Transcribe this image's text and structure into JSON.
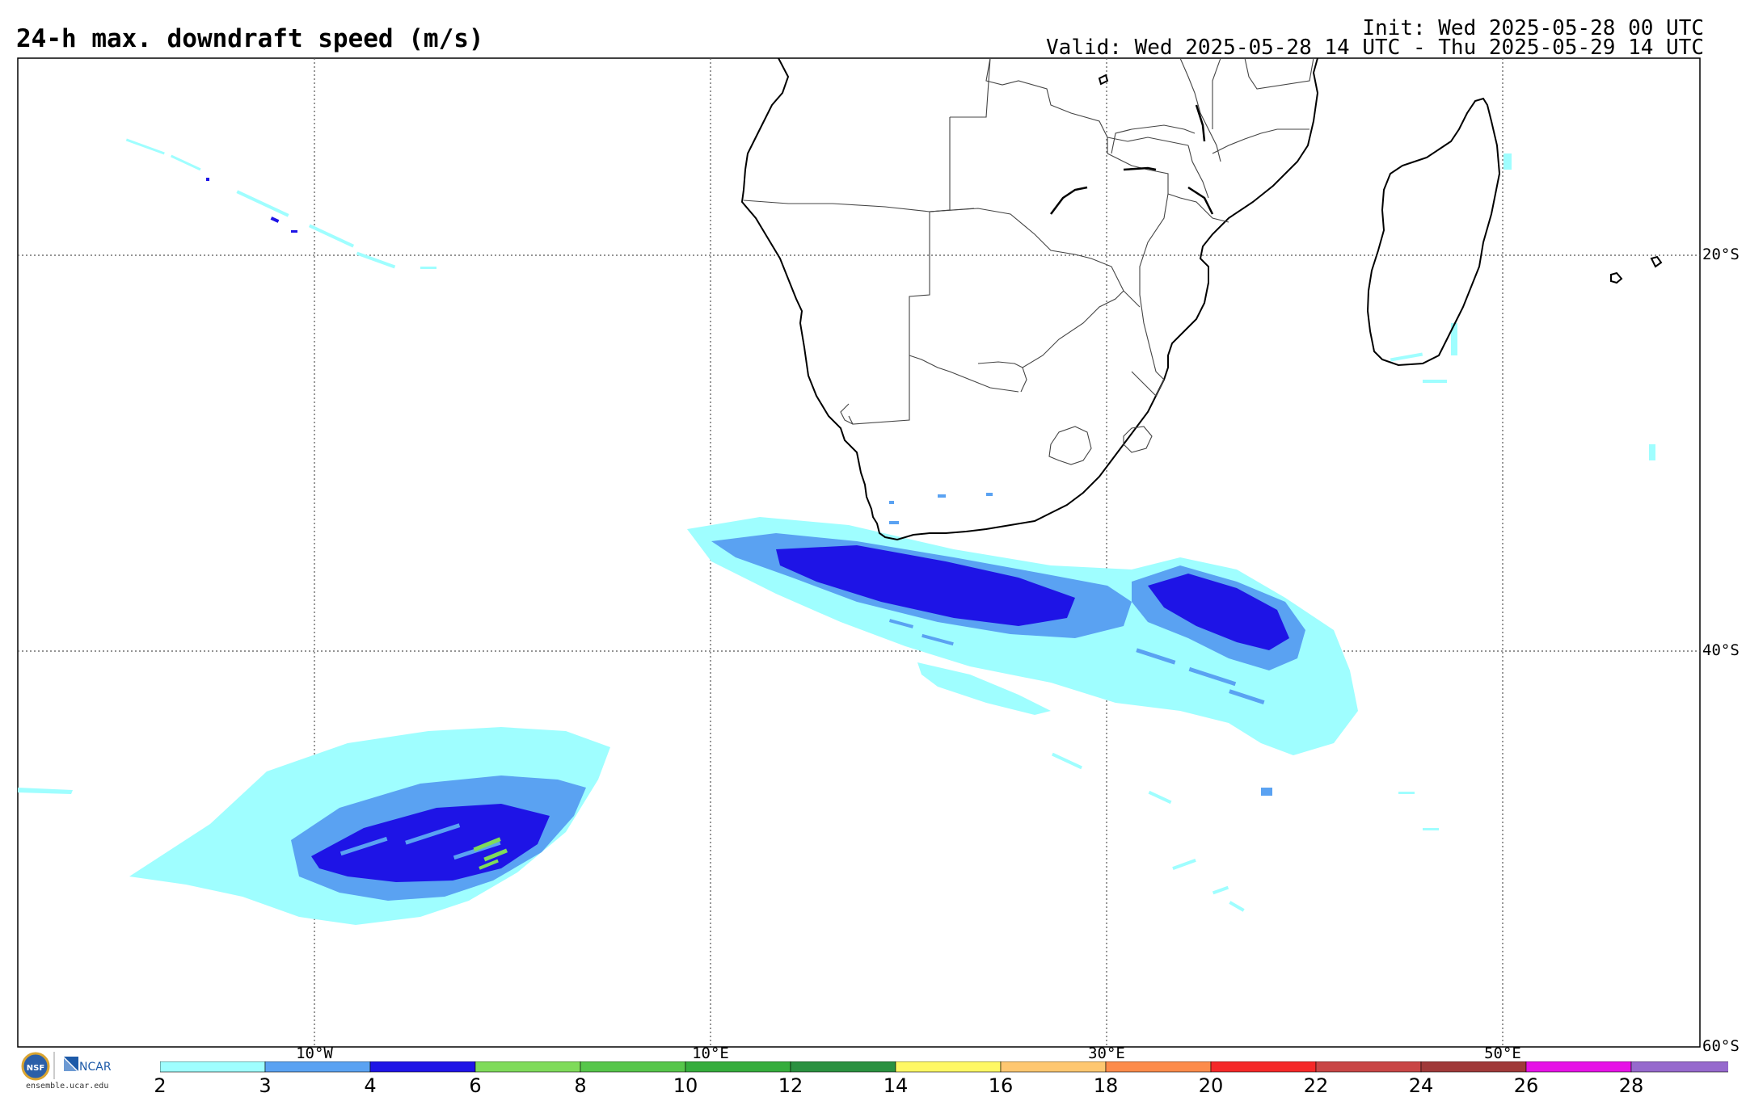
{
  "header": {
    "title": "24-h max. downdraft speed (m/s)",
    "init": "Init: Wed 2025-05-28 00 UTC",
    "valid": "Valid: Wed 2025-05-28 14 UTC - Thu 2025-05-29 14 UTC"
  },
  "map": {
    "region": "Southern Africa and South Atlantic / Southwest Indian Ocean",
    "lon_labels": [
      "10°W",
      "10°E",
      "30°E",
      "50°E"
    ],
    "lat_labels": [
      "20°S",
      "40°S",
      "60°S"
    ],
    "gridlines": "dotted"
  },
  "colorbar": {
    "units": "m/s",
    "ticks": [
      "2",
      "3",
      "4",
      "6",
      "8",
      "10",
      "12",
      "14",
      "16",
      "18",
      "20",
      "22",
      "24",
      "26",
      "28"
    ],
    "colors": [
      "#9ffeff",
      "#5aa2f2",
      "#1e14e6",
      "#7fdb5a",
      "#56c64a",
      "#35ad3c",
      "#2a9140",
      "#fff864",
      "#fec770",
      "#fd8b4a",
      "#f52828",
      "#c94545",
      "#a03939",
      "#e612e6",
      "#9669cd"
    ]
  },
  "branding": {
    "logos": [
      "NSF",
      "NCAR"
    ],
    "site": "ensemble.ucar.edu"
  }
}
